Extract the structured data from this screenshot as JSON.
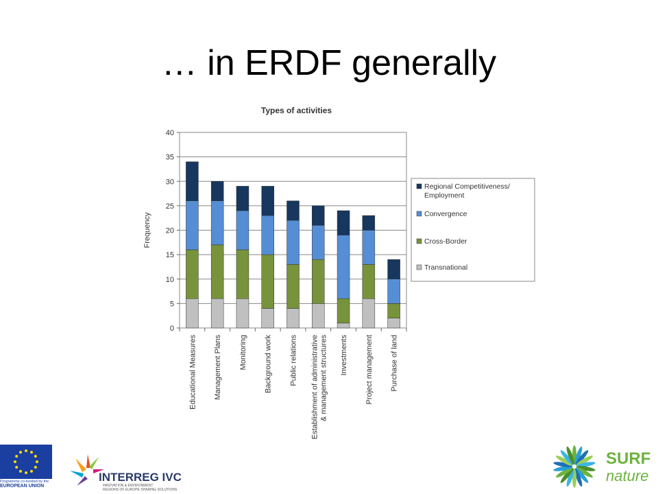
{
  "slide": {
    "title": "… in ERDF generally"
  },
  "chart_data": {
    "type": "bar",
    "stacked": true,
    "title": "Types of activities",
    "xlabel": "",
    "ylabel": "Frequency",
    "ylim": [
      0,
      40
    ],
    "yticks": [
      0,
      5,
      10,
      15,
      20,
      25,
      30,
      35,
      40
    ],
    "grid": true,
    "legend_position": "right",
    "categories": [
      "Educational Measures",
      "Management Plans",
      "Monitoring",
      "Background work",
      "Public relations",
      "Establishment of administrative & management structures",
      "Investments",
      "Project management",
      "Purchase of land"
    ],
    "category_lines": [
      [
        "Educational Measures"
      ],
      [
        "Management Plans"
      ],
      [
        "Monitoring"
      ],
      [
        "Background work"
      ],
      [
        "Public relations"
      ],
      [
        "Establishment of administrative",
        "& management structures"
      ],
      [
        "Investments"
      ],
      [
        "Project management"
      ],
      [
        "Purchase of land"
      ]
    ],
    "series": [
      {
        "name": "Transnational",
        "color": "#c0c0c0",
        "values": [
          6,
          6,
          6,
          4,
          4,
          5,
          1,
          6,
          2
        ]
      },
      {
        "name": "Cross-Border",
        "color": "#77933c",
        "values": [
          10,
          11,
          10,
          11,
          9,
          9,
          5,
          7,
          3
        ]
      },
      {
        "name": "Convergence",
        "color": "#558ed5",
        "values": [
          10,
          9,
          8,
          8,
          9,
          7,
          13,
          7,
          5
        ]
      },
      {
        "name": "Regional Competitiveness/ Employment",
        "color": "#17375e",
        "values": [
          8,
          4,
          5,
          6,
          4,
          4,
          5,
          3,
          4
        ]
      }
    ],
    "legend_lines": [
      [
        "Regional Competitiveness/",
        "Employment"
      ],
      [
        "Convergence"
      ],
      [
        "Cross-Border"
      ],
      [
        "Transnational"
      ]
    ]
  },
  "footer": {
    "eu": {
      "line1": "Programme co-funded by the",
      "line2": "EUROPEAN UNION"
    },
    "interreg": {
      "name": "INTERREG IVC",
      "sub1": "INNOVATION & ENVIRONMENT",
      "sub2": "REGIONS OF EUROPE SHARING SOLUTIONS"
    },
    "surf": {
      "name1": "SURF",
      "name2": "nature"
    }
  }
}
